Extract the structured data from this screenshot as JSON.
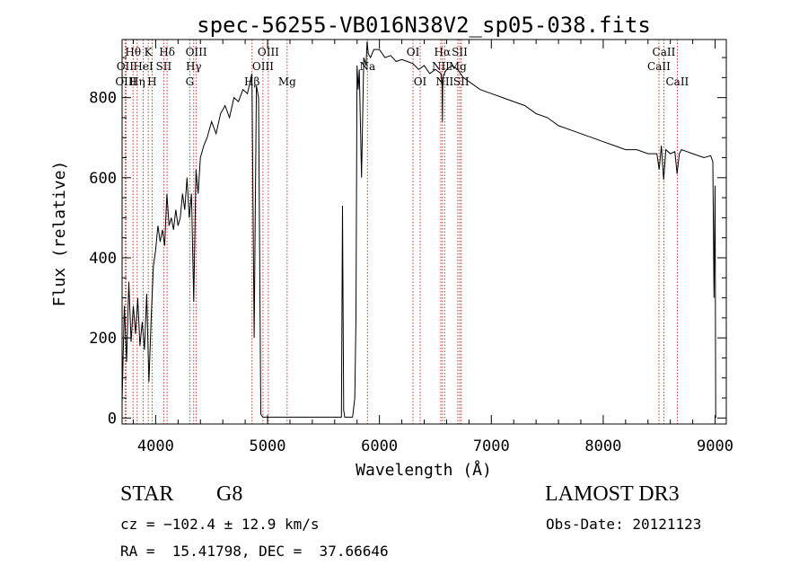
{
  "chart_data": {
    "type": "line",
    "title": "spec-56255-VB016N38V2_sp05-038.fits",
    "xlabel": "Wavelength (Å)",
    "ylabel": "Flux (relative)",
    "xlim": [
      3700,
      9100
    ],
    "ylim": [
      -15,
      945
    ],
    "xticks": [
      4000,
      5000,
      6000,
      7000,
      8000,
      9000
    ],
    "yticks": [
      0,
      200,
      400,
      600,
      800
    ],
    "series": [
      {
        "name": "flux",
        "x": [
          3700,
          3720,
          3740,
          3760,
          3780,
          3800,
          3820,
          3840,
          3860,
          3880,
          3900,
          3920,
          3940,
          3960,
          3980,
          4000,
          4020,
          4040,
          4060,
          4080,
          4100,
          4120,
          4140,
          4160,
          4180,
          4200,
          4220,
          4240,
          4260,
          4280,
          4300,
          4320,
          4340,
          4360,
          4380,
          4400,
          4430,
          4460,
          4500,
          4540,
          4580,
          4620,
          4660,
          4700,
          4740,
          4780,
          4820,
          4860,
          4880,
          4900,
          4920,
          4940,
          4950,
          4960,
          5000,
          5200,
          5400,
          5600,
          5660,
          5670,
          5680,
          5690,
          5700,
          5720,
          5760,
          5780,
          5790,
          5800,
          5810,
          5820,
          5840,
          5860,
          5880,
          5890,
          5900,
          5920,
          5950,
          6000,
          6050,
          6100,
          6150,
          6200,
          6250,
          6300,
          6350,
          6400,
          6450,
          6500,
          6550,
          6560,
          6563,
          6566,
          6580,
          6600,
          6650,
          6700,
          6750,
          6800,
          6900,
          7000,
          7100,
          7200,
          7300,
          7400,
          7500,
          7600,
          7700,
          7800,
          7900,
          8000,
          8100,
          8200,
          8300,
          8400,
          8480,
          8500,
          8520,
          8540,
          8560,
          8600,
          8640,
          8660,
          8680,
          8700,
          8800,
          8900,
          8960,
          8980,
          8990,
          9000,
          9005
        ],
        "y": [
          40,
          280,
          140,
          340,
          190,
          280,
          210,
          300,
          180,
          240,
          170,
          310,
          90,
          250,
          380,
          420,
          480,
          440,
          470,
          430,
          560,
          480,
          500,
          470,
          520,
          480,
          500,
          560,
          520,
          600,
          500,
          560,
          290,
          620,
          560,
          650,
          680,
          700,
          740,
          710,
          760,
          780,
          750,
          800,
          790,
          820,
          810,
          860,
          200,
          830,
          800,
          10,
          5,
          2,
          2,
          2,
          2,
          2,
          2,
          530,
          20,
          2,
          2,
          2,
          2,
          50,
          250,
          880,
          820,
          870,
          600,
          900,
          880,
          940,
          910,
          900,
          920,
          920,
          900,
          905,
          890,
          895,
          890,
          885,
          870,
          880,
          860,
          870,
          860,
          830,
          740,
          850,
          860,
          870,
          880,
          870,
          850,
          840,
          820,
          810,
          800,
          790,
          780,
          760,
          750,
          730,
          720,
          710,
          700,
          690,
          680,
          670,
          670,
          660,
          660,
          620,
          680,
          595,
          670,
          660,
          665,
          610,
          660,
          670,
          660,
          650,
          655,
          640,
          300,
          580,
          0
        ]
      }
    ],
    "lines": [
      {
        "name": "Hθ",
        "wl": 3798,
        "row": 1
      },
      {
        "name": "OII",
        "wl": 3727,
        "row": 2
      },
      {
        "name": "OIII",
        "wl": 3735,
        "row": 3
      },
      {
        "name": "Hη",
        "wl": 3835,
        "row": 3
      },
      {
        "name": "HeI",
        "wl": 3889,
        "row": 2
      },
      {
        "name": "K",
        "wl": 3934,
        "row": 1
      },
      {
        "name": "H",
        "wl": 3968,
        "row": 3
      },
      {
        "name": "SII",
        "wl": 4072,
        "row": 2
      },
      {
        "name": "Hδ",
        "wl": 4102,
        "row": 1
      },
      {
        "name": "OIII",
        "wl": 4363,
        "row": 1
      },
      {
        "name": "Hγ",
        "wl": 4340,
        "row": 2
      },
      {
        "name": "G",
        "wl": 4305,
        "row": 3
      },
      {
        "name": "Hβ",
        "wl": 4861,
        "row": 3
      },
      {
        "name": "OIII",
        "wl": 5007,
        "row": 1
      },
      {
        "name": "OIII",
        "wl": 4959,
        "row": 2
      },
      {
        "name": "Mg",
        "wl": 5175,
        "row": 3
      },
      {
        "name": "Na",
        "wl": 5893,
        "row": 2
      },
      {
        "name": "OI",
        "wl": 6300,
        "row": 1
      },
      {
        "name": "OI",
        "wl": 6364,
        "row": 3
      },
      {
        "name": "Hα",
        "wl": 6563,
        "row": 1
      },
      {
        "name": "NII",
        "wl": 6548,
        "row": 2
      },
      {
        "name": "NII",
        "wl": 6583,
        "row": 3
      },
      {
        "name": "SII",
        "wl": 6717,
        "row": 1
      },
      {
        "name": "Mg",
        "wl": 6700,
        "row": 2
      },
      {
        "name": "SII",
        "wl": 6731,
        "row": 3
      },
      {
        "name": "CaII",
        "wl": 8542,
        "row": 1
      },
      {
        "name": "CaII",
        "wl": 8498,
        "row": 2
      },
      {
        "name": "CaII",
        "wl": 8662,
        "row": 3
      }
    ]
  },
  "info": {
    "class": "STAR",
    "subclass": "G8",
    "survey": "LAMOST DR3",
    "cz": "cz = −102.4 ± 12.9 km/s",
    "obs_date": "Obs-Date: 20121123",
    "coords": "RA =  15.41798, DEC =  37.66646"
  }
}
